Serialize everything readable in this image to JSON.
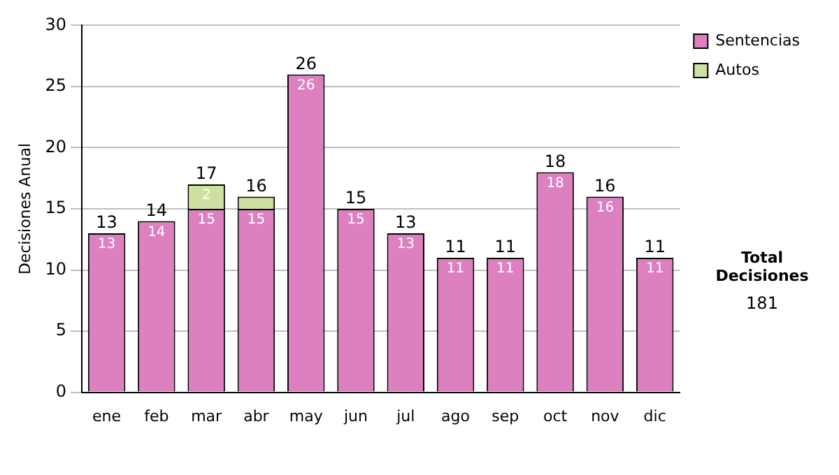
{
  "chart_data": {
    "type": "bar",
    "ylabel": "Decisiones Anual",
    "categories": [
      "ene",
      "feb",
      "mar",
      "abr",
      "may",
      "jun",
      "jul",
      "ago",
      "sep",
      "oct",
      "nov",
      "dic"
    ],
    "series": [
      {
        "name": "Sentencias",
        "color": "#dd80c0",
        "values": [
          13,
          14,
          15,
          15,
          26,
          15,
          13,
          11,
          11,
          18,
          16,
          11
        ],
        "value_labels": [
          "13",
          "14",
          "15",
          "15",
          "26",
          "15",
          "13",
          "11",
          "11",
          "18",
          "16",
          "11"
        ]
      },
      {
        "name": "Autos",
        "color": "#cce0a0",
        "values": [
          null,
          null,
          2,
          1,
          null,
          null,
          null,
          null,
          null,
          null,
          null,
          null
        ],
        "value_labels": [
          null,
          null,
          "2",
          null,
          null,
          null,
          null,
          null,
          null,
          null,
          null,
          null
        ]
      }
    ],
    "stacked": true,
    "totals": [
      "13",
      "14",
      "17",
      "16",
      "26",
      "15",
      "13",
      "11",
      "11",
      "18",
      "16",
      "11"
    ],
    "ylim": [
      0,
      30
    ],
    "yticks": [
      0,
      5,
      10,
      15,
      20,
      25,
      30
    ],
    "grid": "y",
    "legend": "right",
    "annotations": [
      "Total Decisiones",
      "181"
    ]
  }
}
